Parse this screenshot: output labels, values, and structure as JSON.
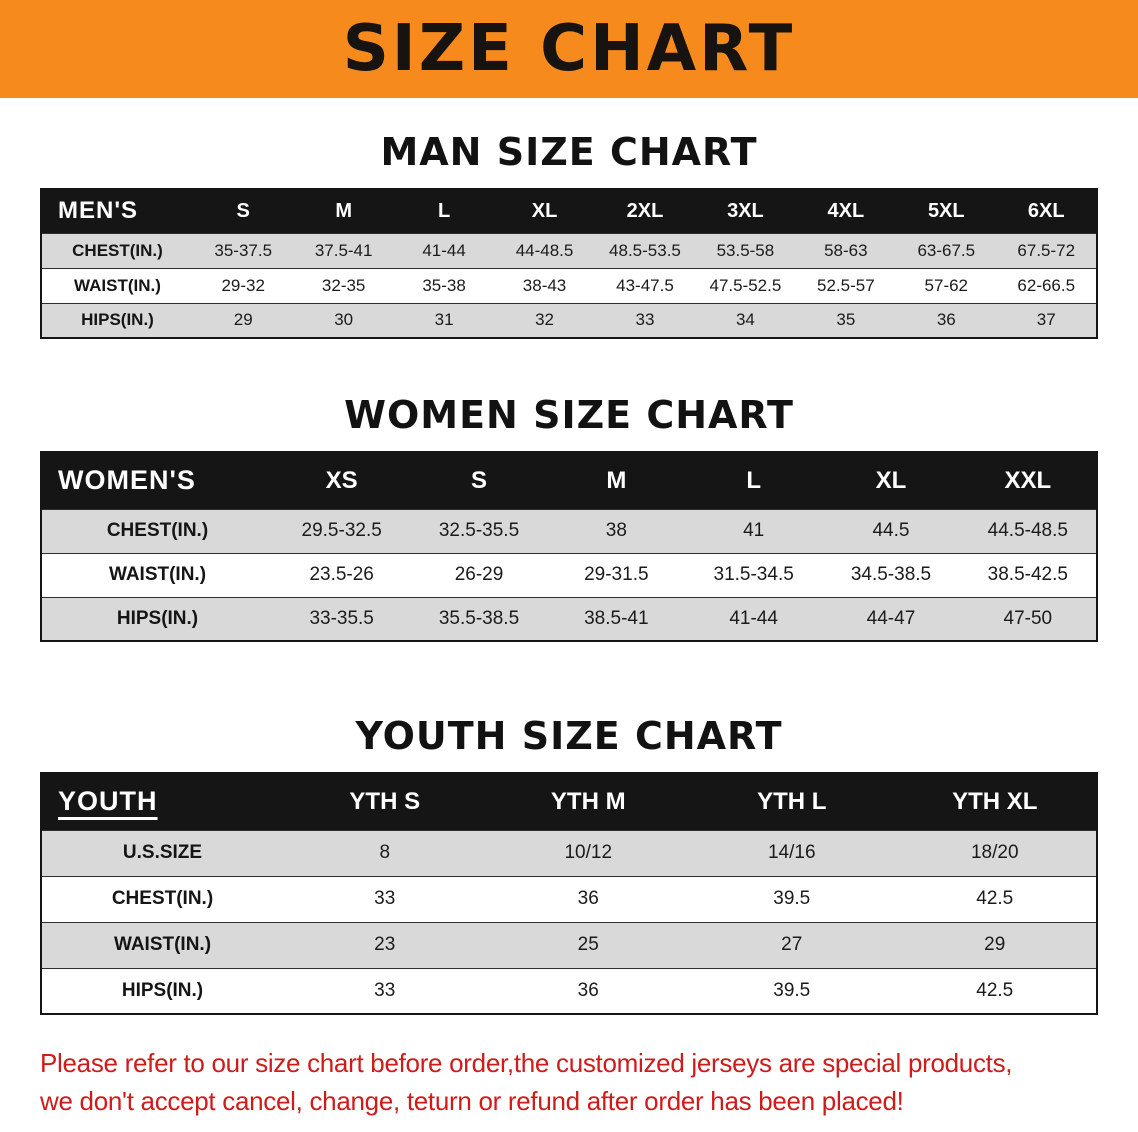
{
  "banner": {
    "title": "SIZE CHART",
    "bg": "#f68a1d"
  },
  "headings": {
    "men": "MAN SIZE CHART",
    "women": "WOMEN SIZE CHART",
    "youth": "YOUTH SIZE CHART"
  },
  "colors": {
    "banner_bg": "#f68a1d",
    "table_header_bg": "#151515",
    "row_alt_gray": "#d9d9d9",
    "footer_red": "#d01b1b"
  },
  "chart_data": [
    {
      "type": "table",
      "title": "MAN SIZE CHART",
      "corner_label": "MEN'S",
      "columns": [
        "S",
        "M",
        "L",
        "XL",
        "2XL",
        "3XL",
        "4XL",
        "5XL",
        "6XL"
      ],
      "rows": [
        {
          "label": "CHEST(IN.)",
          "values": [
            "35-37.5",
            "37.5-41",
            "41-44",
            "44-48.5",
            "48.5-53.5",
            "53.5-58",
            "58-63",
            "63-67.5",
            "67.5-72"
          ]
        },
        {
          "label": "WAIST(IN.)",
          "values": [
            "29-32",
            "32-35",
            "35-38",
            "38-43",
            "43-47.5",
            "47.5-52.5",
            "52.5-57",
            "57-62",
            "62-66.5"
          ]
        },
        {
          "label": "HIPS(IN.)",
          "values": [
            "29",
            "30",
            "31",
            "32",
            "33",
            "34",
            "35",
            "36",
            "37"
          ]
        }
      ]
    },
    {
      "type": "table",
      "title": "WOMEN SIZE CHART",
      "corner_label": "WOMEN'S",
      "columns": [
        "XS",
        "S",
        "M",
        "L",
        "XL",
        "XXL"
      ],
      "rows": [
        {
          "label": "CHEST(IN.)",
          "values": [
            "29.5-32.5",
            "32.5-35.5",
            "38",
            "41",
            "44.5",
            "44.5-48.5"
          ]
        },
        {
          "label": "WAIST(IN.)",
          "values": [
            "23.5-26",
            "26-29",
            "29-31.5",
            "31.5-34.5",
            "34.5-38.5",
            "38.5-42.5"
          ]
        },
        {
          "label": "HIPS(IN.)",
          "values": [
            "33-35.5",
            "35.5-38.5",
            "38.5-41",
            "41-44",
            "44-47",
            "47-50"
          ]
        }
      ]
    },
    {
      "type": "table",
      "title": "YOUTH SIZE CHART",
      "corner_label": "YOUTH",
      "columns": [
        "YTH S",
        "YTH M",
        "YTH L",
        "YTH XL"
      ],
      "rows": [
        {
          "label": "U.S.SIZE",
          "values": [
            "8",
            "10/12",
            "14/16",
            "18/20"
          ]
        },
        {
          "label": "CHEST(IN.)",
          "values": [
            "33",
            "36",
            "39.5",
            "42.5"
          ]
        },
        {
          "label": "WAIST(IN.)",
          "values": [
            "23",
            "25",
            "27",
            "29"
          ]
        },
        {
          "label": "HIPS(IN.)",
          "values": [
            "33",
            "36",
            "39.5",
            "42.5"
          ]
        }
      ]
    }
  ],
  "footer": {
    "line1": "Please refer to our size chart before order,the customized jerseys are special products,",
    "line2": "we don't accept cancel, change, teturn or refund after order has been placed!"
  }
}
